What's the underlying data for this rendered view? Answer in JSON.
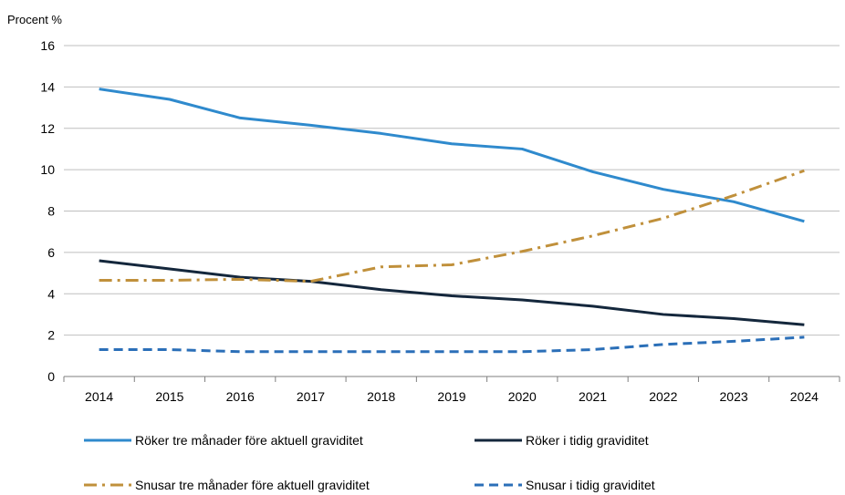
{
  "chart_data": {
    "type": "line",
    "ylabel": "Procent %",
    "xlabel": "",
    "ylim": [
      0,
      16
    ],
    "yticks": [
      0,
      2,
      4,
      6,
      8,
      10,
      12,
      14,
      16
    ],
    "categories": [
      "2014",
      "2015",
      "2016",
      "2017",
      "2018",
      "2019",
      "2020",
      "2021",
      "2022",
      "2023",
      "2024"
    ],
    "grid": "horizontal",
    "legend_position": "bottom",
    "series": [
      {
        "name": "Röker tre månader före aktuell graviditet",
        "color": "#2F8ACD",
        "style": "solid",
        "values": [
          13.9,
          13.4,
          12.5,
          12.15,
          11.75,
          11.25,
          11.0,
          9.9,
          9.05,
          8.45,
          7.5
        ]
      },
      {
        "name": "Röker i tidig graviditet",
        "color": "#14273C",
        "style": "solid",
        "values": [
          5.6,
          5.2,
          4.8,
          4.6,
          4.2,
          3.9,
          3.7,
          3.4,
          3.0,
          2.8,
          2.5
        ]
      },
      {
        "name": "Snusar tre månader före aktuell graviditet",
        "color": "#C0903B",
        "style": "dashdot",
        "values": [
          4.65,
          4.65,
          4.7,
          4.6,
          5.3,
          5.4,
          6.05,
          6.8,
          7.65,
          8.75,
          9.95
        ]
      },
      {
        "name": "Snusar i tidig graviditet",
        "color": "#2B6FB8",
        "style": "dashed",
        "values": [
          1.3,
          1.3,
          1.2,
          1.2,
          1.2,
          1.2,
          1.2,
          1.3,
          1.55,
          1.7,
          1.9
        ]
      }
    ]
  }
}
